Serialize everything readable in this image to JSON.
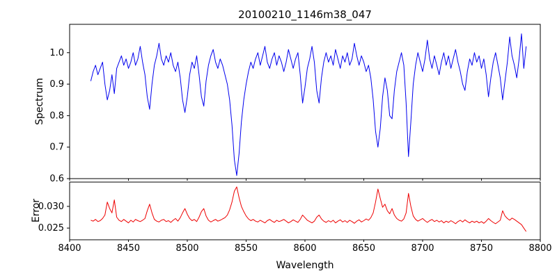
{
  "chart_data": {
    "type": "line",
    "title": "20100210_1146m38_047",
    "xlabel": "Wavelength",
    "x_start": 8418,
    "x_step": 2,
    "xlim": [
      8400,
      8800
    ],
    "xticks": [
      8400,
      8450,
      8500,
      8550,
      8600,
      8650,
      8700,
      8750,
      8800
    ],
    "xtick_labels": [
      "8400",
      "8450",
      "8500",
      "8550",
      "8600",
      "8650",
      "8700",
      "8750",
      "8800"
    ],
    "grid": false,
    "legend": "none",
    "subplots": [
      {
        "name": "spectrum",
        "ylabel": "Spectrum",
        "color": "#0000ee",
        "ylim": [
          0.6,
          1.09
        ],
        "yticks": [
          0.6,
          0.7,
          0.8,
          0.9,
          1.0
        ],
        "ytick_labels": [
          "0.6",
          "0.7",
          "0.8",
          "0.9",
          "1.0"
        ],
        "values": [
          0.91,
          0.94,
          0.96,
          0.93,
          0.95,
          0.97,
          0.9,
          0.85,
          0.88,
          0.93,
          0.87,
          0.95,
          0.97,
          0.99,
          0.96,
          0.98,
          0.95,
          0.97,
          1.0,
          0.96,
          0.98,
          1.02,
          0.97,
          0.93,
          0.86,
          0.82,
          0.9,
          0.96,
          0.99,
          1.03,
          0.98,
          0.96,
          0.99,
          0.97,
          1.0,
          0.96,
          0.94,
          0.97,
          0.92,
          0.85,
          0.81,
          0.86,
          0.93,
          0.97,
          0.95,
          0.99,
          0.93,
          0.86,
          0.83,
          0.91,
          0.96,
          0.99,
          1.01,
          0.97,
          0.95,
          0.98,
          0.96,
          0.93,
          0.9,
          0.85,
          0.77,
          0.66,
          0.61,
          0.68,
          0.78,
          0.85,
          0.9,
          0.94,
          0.97,
          0.95,
          0.98,
          1.0,
          0.96,
          0.99,
          1.02,
          0.97,
          0.95,
          0.98,
          1.0,
          0.96,
          0.99,
          0.97,
          0.94,
          0.97,
          1.01,
          0.98,
          0.95,
          0.98,
          1.0,
          0.93,
          0.84,
          0.89,
          0.95,
          0.98,
          1.02,
          0.97,
          0.88,
          0.84,
          0.92,
          0.97,
          1.0,
          0.97,
          0.99,
          0.96,
          1.01,
          0.98,
          0.95,
          0.99,
          0.97,
          1.0,
          0.96,
          0.98,
          1.03,
          0.99,
          0.96,
          0.99,
          0.97,
          0.94,
          0.96,
          0.92,
          0.85,
          0.75,
          0.7,
          0.76,
          0.86,
          0.92,
          0.88,
          0.8,
          0.79,
          0.88,
          0.94,
          0.97,
          1.0,
          0.96,
          0.84,
          0.67,
          0.78,
          0.9,
          0.96,
          1.0,
          0.97,
          0.94,
          0.98,
          1.04,
          0.98,
          0.95,
          0.99,
          0.96,
          0.93,
          0.97,
          1.0,
          0.96,
          0.99,
          0.95,
          0.98,
          1.01,
          0.97,
          0.94,
          0.9,
          0.88,
          0.94,
          0.98,
          0.96,
          1.0,
          0.97,
          0.99,
          0.95,
          0.98,
          0.93,
          0.86,
          0.92,
          0.97,
          1.0,
          0.96,
          0.92,
          0.85,
          0.91,
          0.97,
          1.05,
          0.99,
          0.96,
          0.92,
          0.98,
          1.06,
          0.95,
          1.02
        ]
      },
      {
        "name": "error",
        "ylabel": "Error",
        "color": "#ee0000",
        "ylim": [
          0.0223,
          0.0356
        ],
        "yticks": [
          0.025,
          0.03
        ],
        "ytick_labels": [
          "0.025",
          "0.030"
        ],
        "values": [
          0.0268,
          0.0266,
          0.027,
          0.0265,
          0.0267,
          0.0272,
          0.028,
          0.031,
          0.0295,
          0.0285,
          0.0315,
          0.0275,
          0.0268,
          0.0265,
          0.027,
          0.0266,
          0.0262,
          0.0268,
          0.0264,
          0.027,
          0.0267,
          0.0265,
          0.0268,
          0.0272,
          0.029,
          0.0305,
          0.0285,
          0.027,
          0.0266,
          0.0264,
          0.0268,
          0.027,
          0.0265,
          0.0267,
          0.0263,
          0.0268,
          0.0272,
          0.0266,
          0.0274,
          0.0285,
          0.0295,
          0.0282,
          0.0272,
          0.0267,
          0.027,
          0.0265,
          0.0275,
          0.0288,
          0.0295,
          0.0278,
          0.0268,
          0.0264,
          0.0267,
          0.027,
          0.0266,
          0.0268,
          0.0271,
          0.0274,
          0.028,
          0.0292,
          0.031,
          0.0335,
          0.0345,
          0.032,
          0.03,
          0.0288,
          0.0278,
          0.0271,
          0.0267,
          0.027,
          0.0266,
          0.0264,
          0.0268,
          0.0265,
          0.0262,
          0.0267,
          0.027,
          0.0266,
          0.0263,
          0.0268,
          0.0265,
          0.0267,
          0.027,
          0.0266,
          0.0262,
          0.0265,
          0.0269,
          0.0266,
          0.0263,
          0.027,
          0.028,
          0.0274,
          0.0268,
          0.0265,
          0.0262,
          0.0266,
          0.0275,
          0.028,
          0.0271,
          0.0266,
          0.0263,
          0.0267,
          0.0264,
          0.0268,
          0.0262,
          0.0266,
          0.0269,
          0.0264,
          0.0267,
          0.0263,
          0.0268,
          0.0265,
          0.0261,
          0.0266,
          0.0269,
          0.0264,
          0.0267,
          0.0271,
          0.0268,
          0.0274,
          0.0285,
          0.031,
          0.034,
          0.0318,
          0.0298,
          0.0305,
          0.029,
          0.0283,
          0.0295,
          0.028,
          0.0272,
          0.0268,
          0.0266,
          0.0271,
          0.0285,
          0.033,
          0.03,
          0.0278,
          0.027,
          0.0266,
          0.0269,
          0.0272,
          0.0267,
          0.0263,
          0.0267,
          0.027,
          0.0265,
          0.0268,
          0.0264,
          0.0267,
          0.0262,
          0.0266,
          0.0263,
          0.0267,
          0.0264,
          0.026,
          0.0265,
          0.0268,
          0.0264,
          0.0269,
          0.0265,
          0.0262,
          0.0266,
          0.0263,
          0.0266,
          0.0262,
          0.0265,
          0.0261,
          0.0266,
          0.0272,
          0.0267,
          0.0263,
          0.026,
          0.0264,
          0.0268,
          0.029,
          0.0278,
          0.0272,
          0.0268,
          0.0273,
          0.027,
          0.0266,
          0.0262,
          0.0258,
          0.025,
          0.0242
        ]
      }
    ]
  }
}
